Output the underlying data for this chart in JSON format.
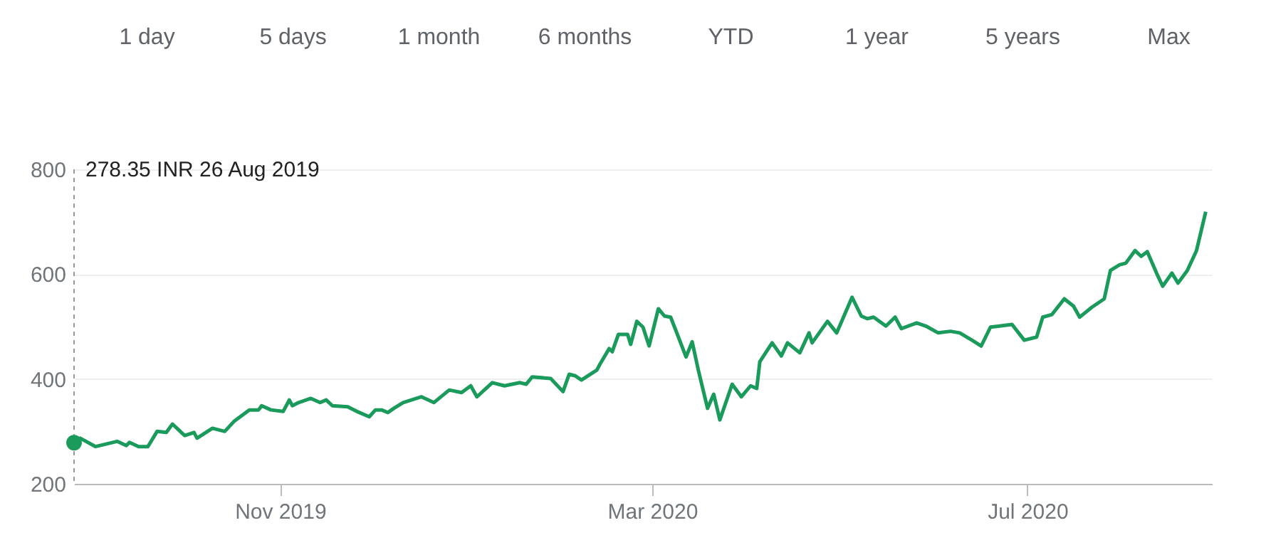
{
  "chart_data": {
    "type": "line",
    "annotations": [
      "1 day",
      "5 days",
      "1 month",
      "6 months",
      "YTD",
      "1 year",
      "5 years",
      "Max",
      "278.35 INR  26 Aug 2019"
    ],
    "x": [
      "2019-08-26",
      "2019-08-28",
      "2019-09-02",
      "2019-09-09",
      "2019-09-12",
      "2019-09-13",
      "2019-09-16",
      "2019-09-19",
      "2019-09-22",
      "2019-09-25",
      "2019-09-27",
      "2019-10-01",
      "2019-10-04",
      "2019-10-05",
      "2019-10-10",
      "2019-10-14",
      "2019-10-17",
      "2019-10-22",
      "2019-10-25",
      "2019-10-26",
      "2019-10-29",
      "2019-11-02",
      "2019-11-04",
      "2019-11-05",
      "2019-11-07",
      "2019-11-11",
      "2019-11-14",
      "2019-11-16",
      "2019-11-18",
      "2019-11-23",
      "2019-11-26",
      "2019-11-30",
      "2019-12-02",
      "2019-12-04",
      "2019-12-06",
      "2019-12-08",
      "2019-12-11",
      "2019-12-17",
      "2019-12-21",
      "2019-12-26",
      "2019-12-30",
      "2020-01-02",
      "2020-01-04",
      "2020-01-09",
      "2020-01-13",
      "2020-01-18",
      "2020-01-20",
      "2020-01-22",
      "2020-01-28",
      "2020-02-01",
      "2020-02-03",
      "2020-02-05",
      "2020-02-07",
      "2020-02-12",
      "2020-02-13",
      "2020-02-16",
      "2020-02-17",
      "2020-02-19",
      "2020-02-22",
      "2020-02-23",
      "2020-02-25",
      "2020-02-27",
      "2020-02-29",
      "2020-03-03",
      "2020-03-05",
      "2020-03-07",
      "2020-03-09",
      "2020-03-12",
      "2020-03-14",
      "2020-03-16",
      "2020-03-19",
      "2020-03-21",
      "2020-03-23",
      "2020-03-27",
      "2020-03-30",
      "2020-04-02",
      "2020-04-04",
      "2020-04-05",
      "2020-04-09",
      "2020-04-12",
      "2020-04-14",
      "2020-04-18",
      "2020-04-21",
      "2020-04-22",
      "2020-04-27",
      "2020-04-30",
      "2020-05-05",
      "2020-05-08",
      "2020-05-10",
      "2020-05-12",
      "2020-05-16",
      "2020-05-19",
      "2020-05-21",
      "2020-05-26",
      "2020-05-29",
      "2020-06-02",
      "2020-06-06",
      "2020-06-09",
      "2020-06-13",
      "2020-06-16",
      "2020-06-19",
      "2020-06-22",
      "2020-06-26",
      "2020-06-30",
      "2020-07-04",
      "2020-07-06",
      "2020-07-09",
      "2020-07-13",
      "2020-07-16",
      "2020-07-18",
      "2020-07-22",
      "2020-07-26",
      "2020-07-28",
      "2020-07-31",
      "2020-08-02",
      "2020-08-05",
      "2020-08-07",
      "2020-08-09",
      "2020-08-12",
      "2020-08-14",
      "2020-08-17",
      "2020-08-19",
      "2020-08-22",
      "2020-08-25",
      "2020-08-28"
    ],
    "series": [
      {
        "color": "#1a9a5b",
        "values": [
          278.35,
          287,
          271,
          281,
          273,
          279,
          271,
          271,
          300,
          298,
          314,
          292,
          298,
          287,
          306,
          300,
          319,
          341,
          341,
          349,
          341,
          338,
          360,
          349,
          355,
          363,
          355,
          360,
          349,
          347,
          338,
          328,
          341,
          341,
          336,
          344,
          355,
          366,
          355,
          379,
          374,
          387,
          366,
          393,
          387,
          393,
          390,
          404,
          401,
          376,
          409,
          406,
          398,
          417,
          428,
          458,
          452,
          485,
          485,
          466,
          510,
          499,
          463,
          534,
          520,
          518,
          488,
          442,
          471,
          417,
          344,
          371,
          322,
          390,
          366,
          387,
          382,
          433,
          469,
          444,
          469,
          450,
          488,
          469,
          510,
          488,
          556,
          520,
          515,
          518,
          501,
          518,
          496,
          507,
          501,
          488,
          491,
          488,
          474,
          463,
          499,
          501,
          504,
          474,
          480,
          518,
          523,
          553,
          539,
          518,
          537,
          553,
          607,
          618,
          621,
          645,
          634,
          643,
          602,
          577,
          602,
          583,
          607,
          645,
          719
        ]
      }
    ],
    "xlim": [
      "2019-08-26",
      "2020-08-30"
    ],
    "xticks": [
      {
        "value": "2019-11-01",
        "label": "Nov 2019"
      },
      {
        "value": "2020-03-01",
        "label": "Mar 2020"
      },
      {
        "value": "2020-07-01",
        "label": "Jul 2020"
      }
    ],
    "ylim": [
      200,
      800
    ],
    "yticks": [
      200,
      400,
      600,
      800
    ],
    "grid": "y",
    "ref_lines": [
      {
        "axis": "x",
        "value": "2019-08-26",
        "label": null,
        "color": "#999999",
        "line_style": "dashed"
      }
    ],
    "marker": "none",
    "line_style": "solid"
  }
}
